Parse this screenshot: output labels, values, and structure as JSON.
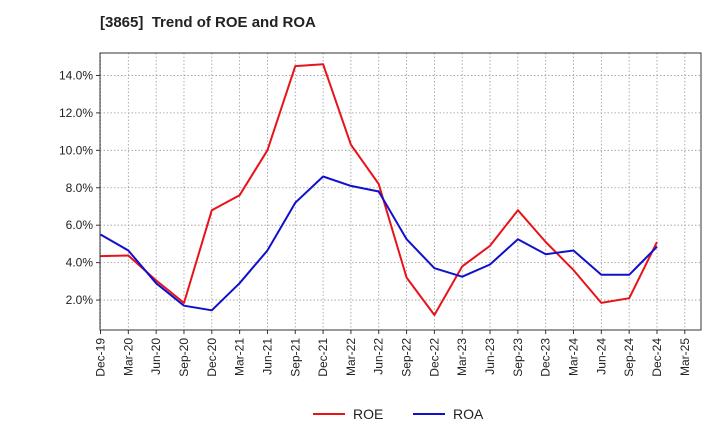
{
  "chart_data": {
    "type": "line",
    "title": "[3865]  Trend of ROE and ROA",
    "xlabel": "",
    "ylabel": "",
    "categories": [
      "Dec-19",
      "Mar-20",
      "Jun-20",
      "Sep-20",
      "Dec-20",
      "Mar-21",
      "Jun-21",
      "Sep-21",
      "Dec-21",
      "Mar-22",
      "Jun-22",
      "Sep-22",
      "Dec-22",
      "Mar-23",
      "Jun-23",
      "Sep-23",
      "Dec-23",
      "Mar-24",
      "Jun-24",
      "Sep-24",
      "Dec-24",
      "Mar-25"
    ],
    "yticks": [
      "2.0%",
      "4.0%",
      "6.0%",
      "8.0%",
      "10.0%",
      "12.0%",
      "14.0%"
    ],
    "ylim": [
      0.4,
      15.2
    ],
    "grid": true,
    "legend_position": "bottom",
    "series": [
      {
        "name": "ROE",
        "color": "#e8131a",
        "values": [
          4.35,
          4.38,
          3.05,
          1.85,
          6.8,
          7.6,
          10.0,
          14.5,
          14.6,
          10.3,
          8.2,
          3.2,
          1.2,
          3.8,
          4.9,
          6.8,
          5.1,
          3.6,
          1.85,
          2.1,
          5.1,
          null
        ]
      },
      {
        "name": "ROA",
        "color": "#1010cc",
        "values": [
          5.5,
          4.65,
          2.9,
          1.7,
          1.45,
          2.9,
          4.65,
          7.2,
          8.6,
          8.1,
          7.8,
          5.25,
          3.7,
          3.25,
          3.9,
          5.25,
          4.45,
          4.65,
          3.35,
          3.35,
          4.85,
          null
        ]
      }
    ]
  }
}
